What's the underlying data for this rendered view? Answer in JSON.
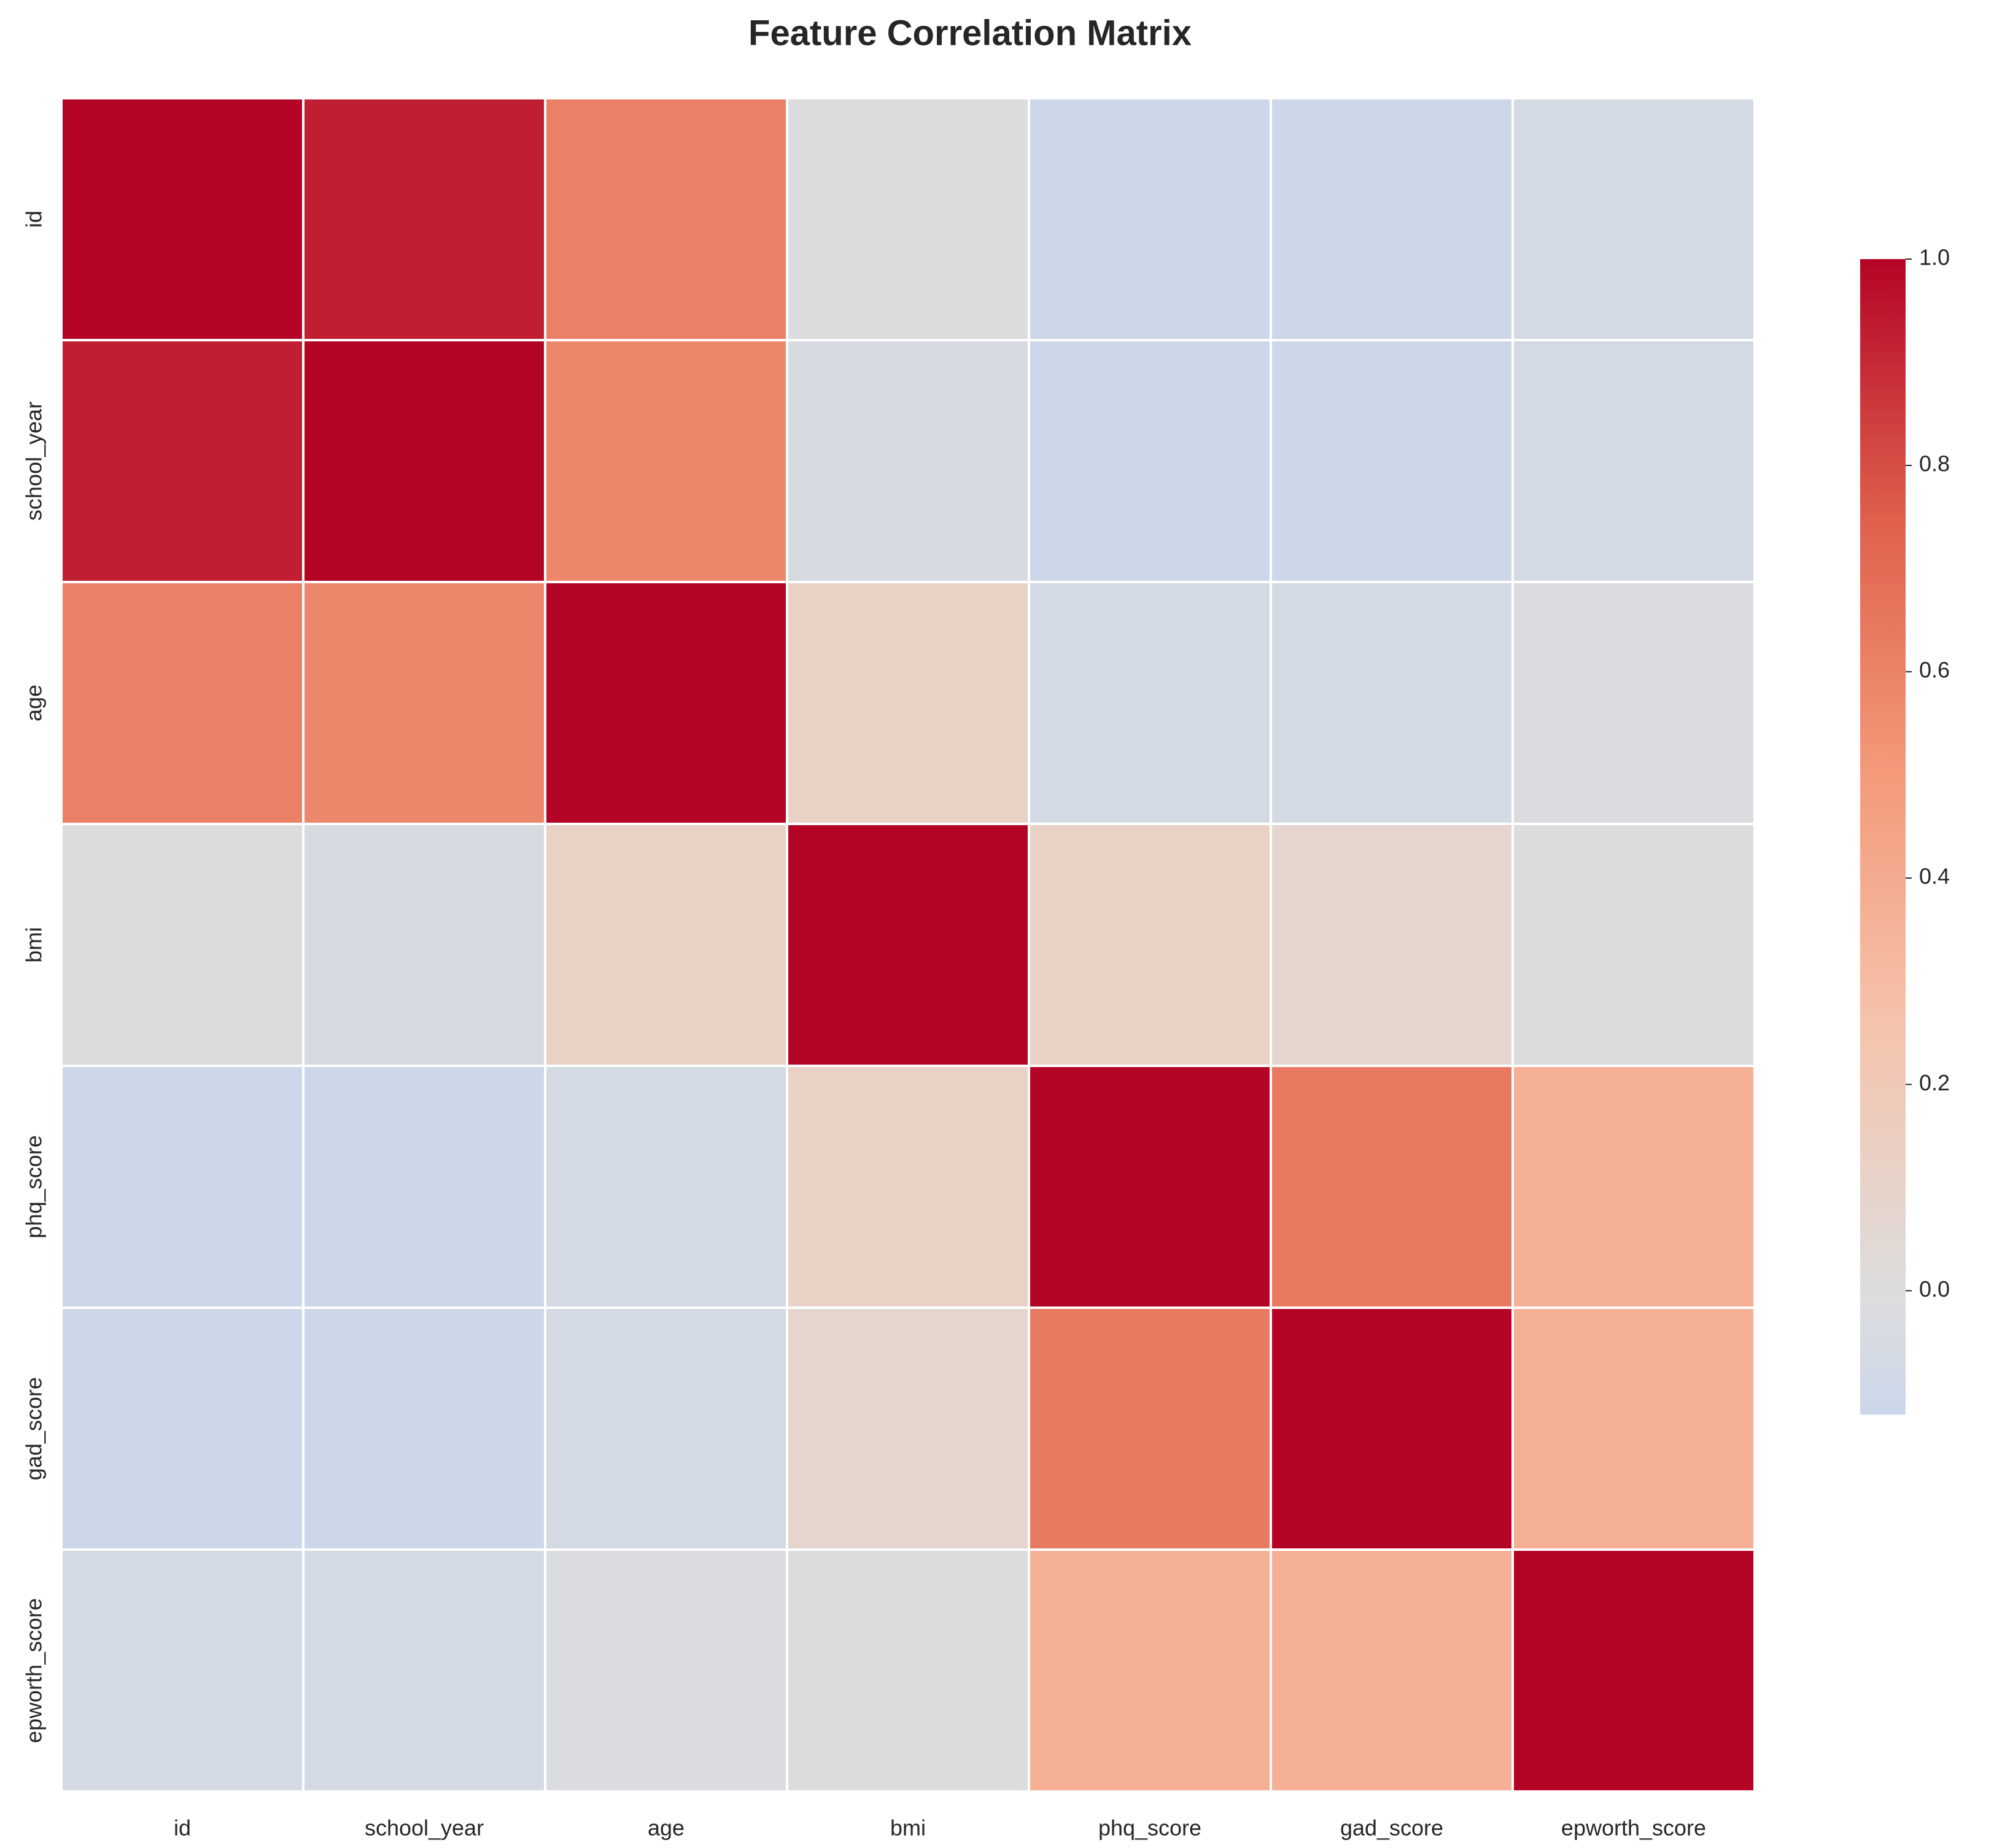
{
  "chart_data": {
    "type": "heatmap",
    "title": "Feature Correlation Matrix",
    "xlabel": "",
    "ylabel": "",
    "x_categories": [
      "id",
      "school_year",
      "age",
      "bmi",
      "phq_score",
      "gad_score",
      "epworth_score"
    ],
    "y_categories": [
      "id",
      "school_year",
      "age",
      "bmi",
      "phq_score",
      "gad_score",
      "epworth_score"
    ],
    "values": [
      [
        1.0,
        0.93,
        0.61,
        -0.01,
        -0.11,
        -0.11,
        -0.06
      ],
      [
        0.93,
        1.0,
        0.58,
        -0.04,
        -0.11,
        -0.11,
        -0.06
      ],
      [
        0.61,
        0.58,
        1.0,
        0.12,
        -0.06,
        -0.06,
        -0.02
      ],
      [
        -0.01,
        -0.04,
        0.12,
        1.0,
        0.12,
        0.08,
        -0.01
      ],
      [
        -0.11,
        -0.11,
        -0.06,
        0.12,
        1.0,
        0.64,
        0.37
      ],
      [
        -0.11,
        -0.11,
        -0.06,
        0.08,
        0.64,
        1.0,
        0.37
      ],
      [
        -0.06,
        -0.06,
        -0.02,
        -0.01,
        0.37,
        0.37,
        1.0
      ]
    ],
    "colormap": "coolwarm",
    "center": 0,
    "vmin": -0.12,
    "vmax": 1.0,
    "colorbar_ticks": [
      "0.0",
      "0.2",
      "0.4",
      "0.6",
      "0.8",
      "1.0"
    ],
    "colorbar_tick_values": [
      0.0,
      0.2,
      0.4,
      0.6,
      0.8,
      1.0
    ],
    "legend_placement": "right",
    "grid": false
  }
}
